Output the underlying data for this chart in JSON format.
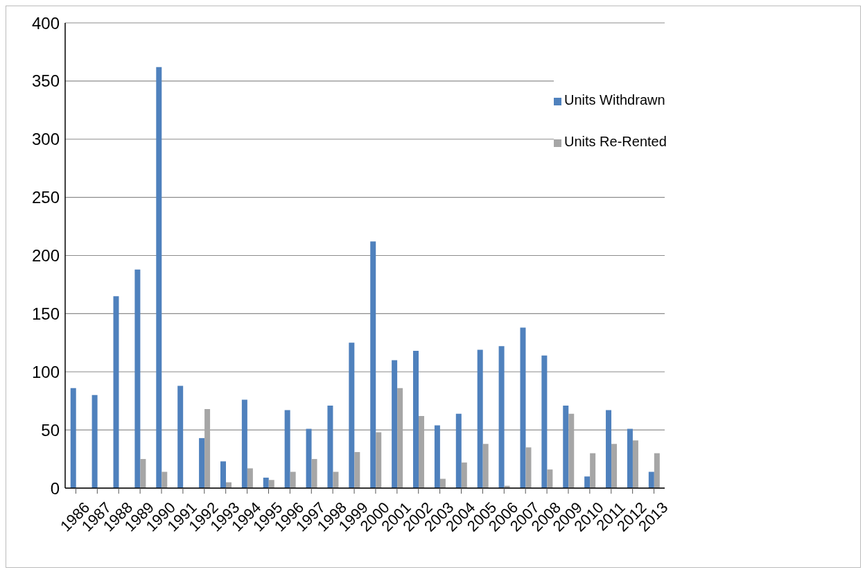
{
  "chart_data": {
    "type": "bar",
    "categories": [
      "1986",
      "1987",
      "1988",
      "1989",
      "1990",
      "1991",
      "1992",
      "1993",
      "1994",
      "1995",
      "1996",
      "1997",
      "1998",
      "1999",
      "2000",
      "2001",
      "2002",
      "2003",
      "2004",
      "2005",
      "2006",
      "2007",
      "2008",
      "2009",
      "2010",
      "2011",
      "2012",
      "2013"
    ],
    "series": [
      {
        "name": "Units Withdrawn",
        "color": "#4f81bd",
        "values": [
          86,
          80,
          165,
          188,
          362,
          88,
          43,
          23,
          76,
          9,
          67,
          51,
          71,
          125,
          212,
          110,
          118,
          54,
          64,
          119,
          122,
          138,
          114,
          71,
          10,
          67,
          51,
          14
        ]
      },
      {
        "name": "Units Re-Rented",
        "color": "#a6a6a6",
        "values": [
          0,
          0,
          0,
          25,
          14,
          null,
          68,
          5,
          17,
          7,
          14,
          25,
          14,
          31,
          48,
          86,
          62,
          8,
          22,
          38,
          2,
          35,
          16,
          64,
          30,
          38,
          41,
          30
        ]
      }
    ],
    "ylim": [
      0,
      400
    ],
    "yticks": [
      0,
      50,
      100,
      150,
      200,
      250,
      300,
      350,
      400
    ],
    "grid": "y",
    "legend": "top right"
  }
}
